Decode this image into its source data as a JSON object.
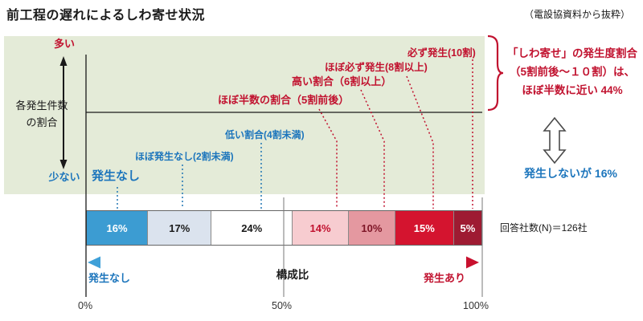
{
  "title": "前工程の遅れによるしわ寄せ状況",
  "source_note": "（電設協資料から抜粋）",
  "left_axis": {
    "high": "多い",
    "low": "少ない",
    "label": "各発生件数\nの割合"
  },
  "summary_right": {
    "occurrence": "「しわ寄せ」の発生度割合\n（5割前後～１０割）は、\nほぼ半数に近い 44%",
    "no_occurrence": "発生しないが 16%",
    "respondents": "回答社数(N)＝126社"
  },
  "bottom": {
    "left_label": "発生なし",
    "center_label": "構成比",
    "right_label": "発生あり",
    "ticks": [
      "0%",
      "50%",
      "100%"
    ]
  },
  "colors": {
    "panel_green": "#E4EBD8",
    "label_blue": "#1C75BC",
    "label_red": "#C1122F",
    "gradient_left": "#3FA0D8",
    "gradient_right": "#C8102E"
  },
  "chart_data": {
    "type": "bar",
    "subtype": "100%-stacked-horizontal",
    "title": "前工程の遅れによるしわ寄せ状況",
    "categories": [
      "発生なし",
      "ほぼ発生なし(2割未満)",
      "低い割合(4割未満)",
      "ほぼ半数の割合（5割前後）",
      "高い割合（6割以上）",
      "ほぼ必ず発生(8割以上)",
      "必ず発生(10割)"
    ],
    "values": [
      16,
      17,
      24,
      14,
      10,
      15,
      5
    ],
    "unit": "%",
    "xlabel": "構成比",
    "xlim": [
      0,
      100
    ],
    "x_ticks": [
      "0%",
      "50%",
      "100%"
    ],
    "ylabel": "各発生件数の割合",
    "y_axis_ends": [
      "多い",
      "少ない"
    ],
    "legend_position": "none",
    "grid": "vertical lines at 0%, 50%, 100%",
    "n_note": "回答社数(N)＝126社",
    "annotations": {
      "occurrence_share": "「しわ寄せ」の発生度割合（5割前後～１０割）は、ほぼ半数に近い 44%",
      "no_occurrence_share": "発生しないが 16%"
    },
    "segments": [
      {
        "label": "16%",
        "value": 16,
        "fill": "#3C9CD2",
        "text": "#FFFFFF"
      },
      {
        "label": "17%",
        "value": 17,
        "fill": "#DBE3EE",
        "text": "#1A1A1A"
      },
      {
        "label": "24%",
        "value": 24,
        "fill": "#FFFFFF",
        "text": "#1A1A1A"
      },
      {
        "label": "14%",
        "value": 14,
        "fill": "#F7CCD0",
        "text": "#C1122F"
      },
      {
        "label": "10%",
        "value": 10,
        "fill": "#E498A0",
        "text": "#7E1627"
      },
      {
        "label": "15%",
        "value": 15,
        "fill": "#D4142F",
        "text": "#FFFFFF"
      },
      {
        "label": "5%",
        "value": 5,
        "fill": "#9E1B32",
        "text": "#FFFFFF"
      }
    ]
  }
}
